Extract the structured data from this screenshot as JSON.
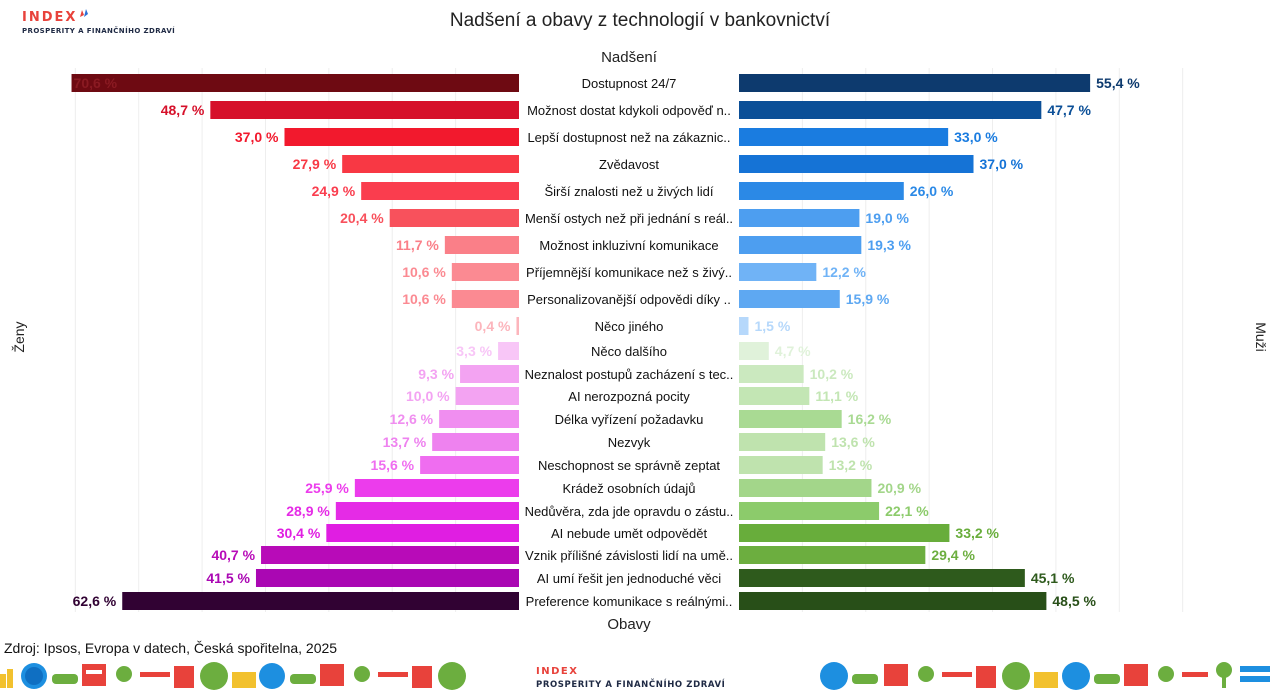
{
  "header": {
    "logo_text": "INDEX",
    "logo_subtitle": "PROSPERITY A FINANČNÍHO ZDRAVÍ"
  },
  "source_text": "Zdroj: Ipsos, Evropa v datech, Česká spořitelna, 2025",
  "footer": {
    "logo_text": "INDEX",
    "logo_subtitle": "PROSPERITY A FINANČNÍHO ZDRAVÍ"
  },
  "colors": {
    "women": [
      "#6e0a12",
      "#d6102a",
      "#f2192d",
      "#f83844",
      "#fa3d4e",
      "#f8515c",
      "#fa7f88",
      "#fb8a92",
      "#fb8a92",
      "#fcb5bc",
      "#f8c6f7",
      "#f3a3f2",
      "#f3a3f2",
      "#f08ef0",
      "#ee82ef",
      "#ef6df0",
      "#ec3cec",
      "#e52be6",
      "#e01ee2",
      "#b80bb8",
      "#aa07b3",
      "#310233"
    ],
    "men": [
      "#0d3a6e",
      "#0b4f97",
      "#1a7ce0",
      "#1573d6",
      "#2b89e6",
      "#4d9ef0",
      "#4d9ef0",
      "#70b3f6",
      "#5ea8f2",
      "#b6d8fb",
      "#e0f2da",
      "#cbe9bf",
      "#c3e6b4",
      "#a9da93",
      "#bfe3ae",
      "#bfe3ae",
      "#a3d68a",
      "#8ccb6b",
      "#68ad3b",
      "#6cae3f",
      "#2e5a1c",
      "#284f18"
    ]
  },
  "chart_data": {
    "type": "bar",
    "orientation": "horizontal-diverging",
    "title": "Nadšení a obavy z technologií v bankovnictví",
    "top_label": "Nadšení",
    "bottom_label": "Obavy",
    "left_axis_label": "Ženy",
    "right_axis_label": "Muži",
    "categories": [
      "Dostupnost 24/7",
      "Možnost dostat kdykoli odpověď n..",
      "Lepší dostupnost než na zákaznic..",
      "Zvědavost",
      "Širší znalosti než u živých lidí",
      "Menší ostych než při jednání s reál..",
      "Možnost inkluzivní komunikace",
      "Příjemnější komunikace než s živý..",
      "Personalizovanější odpovědi díky ..",
      "Něco jiného",
      "Něco dalšího",
      "Neznalost postupů zacházení s tec..",
      "AI nerozpozná pocity",
      "Délka vyřízení požadavku",
      "Nezvyk",
      "Neschopnost se správně zeptat",
      "Krádež osobních údajů",
      "Nedůvěra, zda jde opravdu o zástu..",
      "AI nebude umět odpovědět",
      "Vznik přílišné závislosti lidí na umě..",
      "AI umí řešit jen jednoduché věci",
      "Preference komunikace s reálnými.."
    ],
    "series": [
      {
        "name": "Ženy",
        "values": [
          70.6,
          48.7,
          37.0,
          27.9,
          24.9,
          20.4,
          11.7,
          10.6,
          10.6,
          0.4,
          3.3,
          9.3,
          10.0,
          12.6,
          13.7,
          15.6,
          25.9,
          28.9,
          30.4,
          40.7,
          41.5,
          62.6
        ],
        "labels": [
          "70,6 %",
          "48,7 %",
          "37,0 %",
          "27,9 %",
          "24,9 %",
          "20,4 %",
          "11,7 %",
          "10,6 %",
          "10,6 %",
          "0,4 %",
          "3,3 %",
          "9,3 %",
          "10,0 %",
          "12,6 %",
          "13,7 %",
          "15,6 %",
          "25,9 %",
          "28,9 %",
          "30,4 %",
          "40,7 %",
          "41,5 %",
          "62,6 %"
        ]
      },
      {
        "name": "Muži",
        "values": [
          55.4,
          47.7,
          33.0,
          37.0,
          26.0,
          19.0,
          19.3,
          12.2,
          15.9,
          1.5,
          4.7,
          10.2,
          11.1,
          16.2,
          13.6,
          13.2,
          20.9,
          22.1,
          33.2,
          29.4,
          45.1,
          48.5
        ],
        "labels": [
          "55,4 %",
          "47,7 %",
          "33,0 %",
          "37,0 %",
          "26,0 %",
          "19,0 %",
          "19,3 %",
          "12,2 %",
          "15,9 %",
          "1,5 %",
          "4,7 %",
          "10,2 %",
          "11,1 %",
          "16,2 %",
          "13,6 %",
          "13,2 %",
          "20,9 %",
          "22,1 %",
          "33,2 %",
          "29,4 %",
          "45,1 %",
          "48,5 %"
        ]
      }
    ],
    "xlim": [
      0,
      71
    ]
  }
}
